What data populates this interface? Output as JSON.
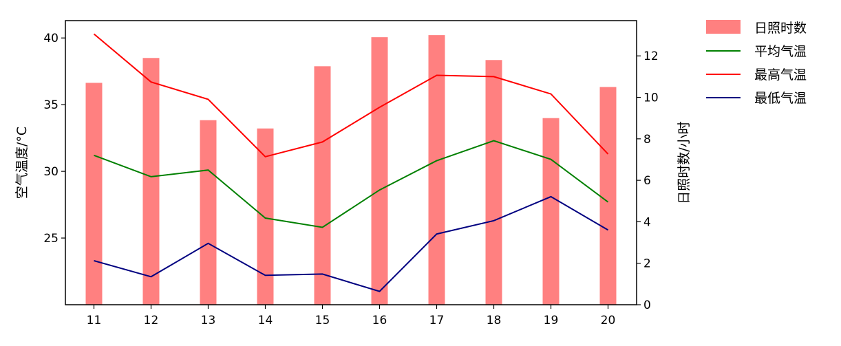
{
  "chart_data": {
    "type": "bar",
    "xlabel": "",
    "ylabel_left": "空气温度/°C",
    "ylabel_right": "日照时数/小时",
    "categories": [
      "11",
      "12",
      "13",
      "14",
      "15",
      "16",
      "17",
      "18",
      "19",
      "20"
    ],
    "bars": {
      "name": "日照时数",
      "axis": "right",
      "color": "#ff8080",
      "values": [
        10.7,
        11.9,
        8.9,
        8.5,
        11.5,
        12.9,
        13.0,
        11.8,
        9.0,
        10.5
      ]
    },
    "series": [
      {
        "name": "平均气温",
        "axis": "left",
        "color": "#008000",
        "values": [
          31.2,
          29.6,
          30.1,
          26.5,
          25.8,
          28.6,
          30.8,
          32.3,
          30.9,
          27.7
        ]
      },
      {
        "name": "最高气温",
        "axis": "left",
        "color": "#ff0000",
        "values": [
          40.3,
          36.7,
          35.4,
          31.1,
          32.2,
          34.8,
          37.2,
          37.1,
          35.8,
          31.3
        ]
      },
      {
        "name": "最低气温",
        "axis": "left",
        "color": "#000080",
        "values": [
          23.3,
          22.1,
          24.6,
          22.2,
          22.3,
          21.0,
          25.3,
          26.3,
          28.1,
          25.6
        ]
      }
    ],
    "ylim_left": [
      20,
      41.3
    ],
    "ylim_right": [
      0,
      13.7
    ],
    "yticks_left": [
      25,
      30,
      35,
      40
    ],
    "yticks_right": [
      0,
      2,
      4,
      6,
      8,
      10,
      12
    ],
    "legend_position": "outside-right-top",
    "grid": false
  }
}
